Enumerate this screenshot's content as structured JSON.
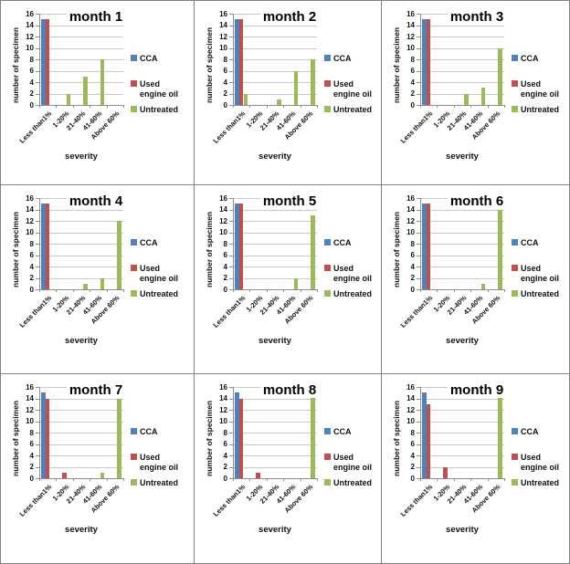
{
  "figure": {
    "grid": "3x3",
    "border_color": "#7f7f7f",
    "background": "#ffffff"
  },
  "chart_data": [
    {
      "type": "bar",
      "title": "month 1",
      "xlabel": "severity",
      "ylabel": "number of specimen",
      "ylim": [
        0,
        16
      ],
      "ytick_step": 2,
      "grid": true,
      "legend_position": "right",
      "categories": [
        "Less than1%",
        "1-20%",
        "21-40%",
        "41-60%",
        "Above 60%"
      ],
      "series": [
        {
          "name": "CCA",
          "color": "#4F81BD",
          "values": [
            15,
            0,
            0,
            0,
            0
          ]
        },
        {
          "name": "Used engine oil",
          "color": "#C0504D",
          "values": [
            15,
            0,
            0,
            0,
            0
          ]
        },
        {
          "name": "Untreated",
          "color": "#9BBB59",
          "values": [
            0,
            2,
            5,
            8,
            0
          ]
        }
      ]
    },
    {
      "type": "bar",
      "title": "month 2",
      "xlabel": "severity",
      "ylabel": "number of specimen",
      "ylim": [
        0,
        16
      ],
      "ytick_step": 2,
      "grid": true,
      "legend_position": "right",
      "categories": [
        "Less than1%",
        "1-20%",
        "21-40%",
        "41-60%",
        "Above 60%"
      ],
      "series": [
        {
          "name": "CCA",
          "color": "#4F81BD",
          "values": [
            15,
            0,
            0,
            0,
            0
          ]
        },
        {
          "name": "Used engine oil",
          "color": "#C0504D",
          "values": [
            15,
            0,
            0,
            0,
            0
          ]
        },
        {
          "name": "Untreated",
          "color": "#9BBB59",
          "values": [
            2,
            0,
            1,
            6,
            8
          ]
        }
      ]
    },
    {
      "type": "bar",
      "title": "month 3",
      "xlabel": "severity",
      "ylabel": "number of specimen",
      "ylim": [
        0,
        16
      ],
      "ytick_step": 2,
      "grid": true,
      "legend_position": "right",
      "categories": [
        "Less than1%",
        "1-20%",
        "21-40%",
        "41-60%",
        "Above 60%"
      ],
      "series": [
        {
          "name": "CCA",
          "color": "#4F81BD",
          "values": [
            15,
            0,
            0,
            0,
            0
          ]
        },
        {
          "name": "Used engine oil",
          "color": "#C0504D",
          "values": [
            15,
            0,
            0,
            0,
            0
          ]
        },
        {
          "name": "Untreated",
          "color": "#9BBB59",
          "values": [
            0,
            0,
            2,
            3,
            10
          ]
        }
      ]
    },
    {
      "type": "bar",
      "title": "month 4",
      "xlabel": "severity",
      "ylabel": "number of specimen",
      "ylim": [
        0,
        16
      ],
      "ytick_step": 2,
      "grid": true,
      "legend_position": "right",
      "categories": [
        "Less than1%",
        "1-20%",
        "21-40%",
        "41-60%",
        "Above 60%"
      ],
      "series": [
        {
          "name": "CCA",
          "color": "#4F81BD",
          "values": [
            15,
            0,
            0,
            0,
            0
          ]
        },
        {
          "name": "Used engine oil",
          "color": "#C0504D",
          "values": [
            15,
            0,
            0,
            0,
            0
          ]
        },
        {
          "name": "Untreated",
          "color": "#9BBB59",
          "values": [
            0,
            0,
            1,
            2,
            12
          ]
        }
      ]
    },
    {
      "type": "bar",
      "title": "month 5",
      "xlabel": "severity",
      "ylabel": "number of specimen",
      "ylim": [
        0,
        16
      ],
      "ytick_step": 2,
      "grid": true,
      "legend_position": "right",
      "categories": [
        "Less than1%",
        "1-20%",
        "21-40%",
        "41-60%",
        "Above 60%"
      ],
      "series": [
        {
          "name": "CCA",
          "color": "#4F81BD",
          "values": [
            15,
            0,
            0,
            0,
            0
          ]
        },
        {
          "name": "Used engine oil",
          "color": "#C0504D",
          "values": [
            15,
            0,
            0,
            0,
            0
          ]
        },
        {
          "name": "Untreated",
          "color": "#9BBB59",
          "values": [
            0,
            0,
            0,
            2,
            13
          ]
        }
      ]
    },
    {
      "type": "bar",
      "title": "month 6",
      "xlabel": "severity",
      "ylabel": "number of specimen",
      "ylim": [
        0,
        16
      ],
      "ytick_step": 2,
      "grid": true,
      "legend_position": "right",
      "categories": [
        "Less than1%",
        "1-20%",
        "21-40%",
        "41-60%",
        "Above 60%"
      ],
      "series": [
        {
          "name": "CCA",
          "color": "#4F81BD",
          "values": [
            15,
            0,
            0,
            0,
            0
          ]
        },
        {
          "name": "Used engine oil",
          "color": "#C0504D",
          "values": [
            15,
            0,
            0,
            0,
            0
          ]
        },
        {
          "name": "Untreated",
          "color": "#9BBB59",
          "values": [
            0,
            0,
            0,
            1,
            14
          ]
        }
      ]
    },
    {
      "type": "bar",
      "title": "month 7",
      "xlabel": "severity",
      "ylabel": "number of specimen",
      "ylim": [
        0,
        16
      ],
      "ytick_step": 2,
      "grid": true,
      "legend_position": "right",
      "categories": [
        "Less than1%",
        "1-20%",
        "21-40%",
        "41-60%",
        "Above 60%"
      ],
      "series": [
        {
          "name": "CCA",
          "color": "#4F81BD",
          "values": [
            15,
            0,
            0,
            0,
            0
          ]
        },
        {
          "name": "Used engine oil",
          "color": "#C0504D",
          "values": [
            14,
            1,
            0,
            0,
            0
          ]
        },
        {
          "name": "Untreated",
          "color": "#9BBB59",
          "values": [
            0,
            0,
            0,
            1,
            14
          ]
        }
      ]
    },
    {
      "type": "bar",
      "title": "month 8",
      "xlabel": "severity",
      "ylabel": "number of specimen",
      "ylim": [
        0,
        16
      ],
      "ytick_step": 2,
      "grid": true,
      "legend_position": "right",
      "categories": [
        "Less than1%",
        "1-20%",
        "21-40%",
        "41-60%",
        "Above 60%"
      ],
      "series": [
        {
          "name": "CCA",
          "color": "#4F81BD",
          "values": [
            15,
            0,
            0,
            0,
            0
          ]
        },
        {
          "name": "Used engine oil",
          "color": "#C0504D",
          "values": [
            14,
            1,
            0,
            0,
            0
          ]
        },
        {
          "name": "Untreated",
          "color": "#9BBB59",
          "values": [
            0,
            0,
            0,
            0,
            15
          ]
        }
      ]
    },
    {
      "type": "bar",
      "title": "month 9",
      "xlabel": "severity",
      "ylabel": "number of specimen",
      "ylim": [
        0,
        16
      ],
      "ytick_step": 2,
      "grid": true,
      "legend_position": "right",
      "categories": [
        "Less than1%",
        "1-20%",
        "21-40%",
        "41-60%",
        "Above 60%"
      ],
      "series": [
        {
          "name": "CCA",
          "color": "#4F81BD",
          "values": [
            15,
            0,
            0,
            0,
            0
          ]
        },
        {
          "name": "Used engine oil",
          "color": "#C0504D",
          "values": [
            13,
            2,
            0,
            0,
            0
          ]
        },
        {
          "name": "Untreated",
          "color": "#9BBB59",
          "values": [
            0,
            0,
            0,
            0,
            15
          ]
        }
      ]
    }
  ]
}
